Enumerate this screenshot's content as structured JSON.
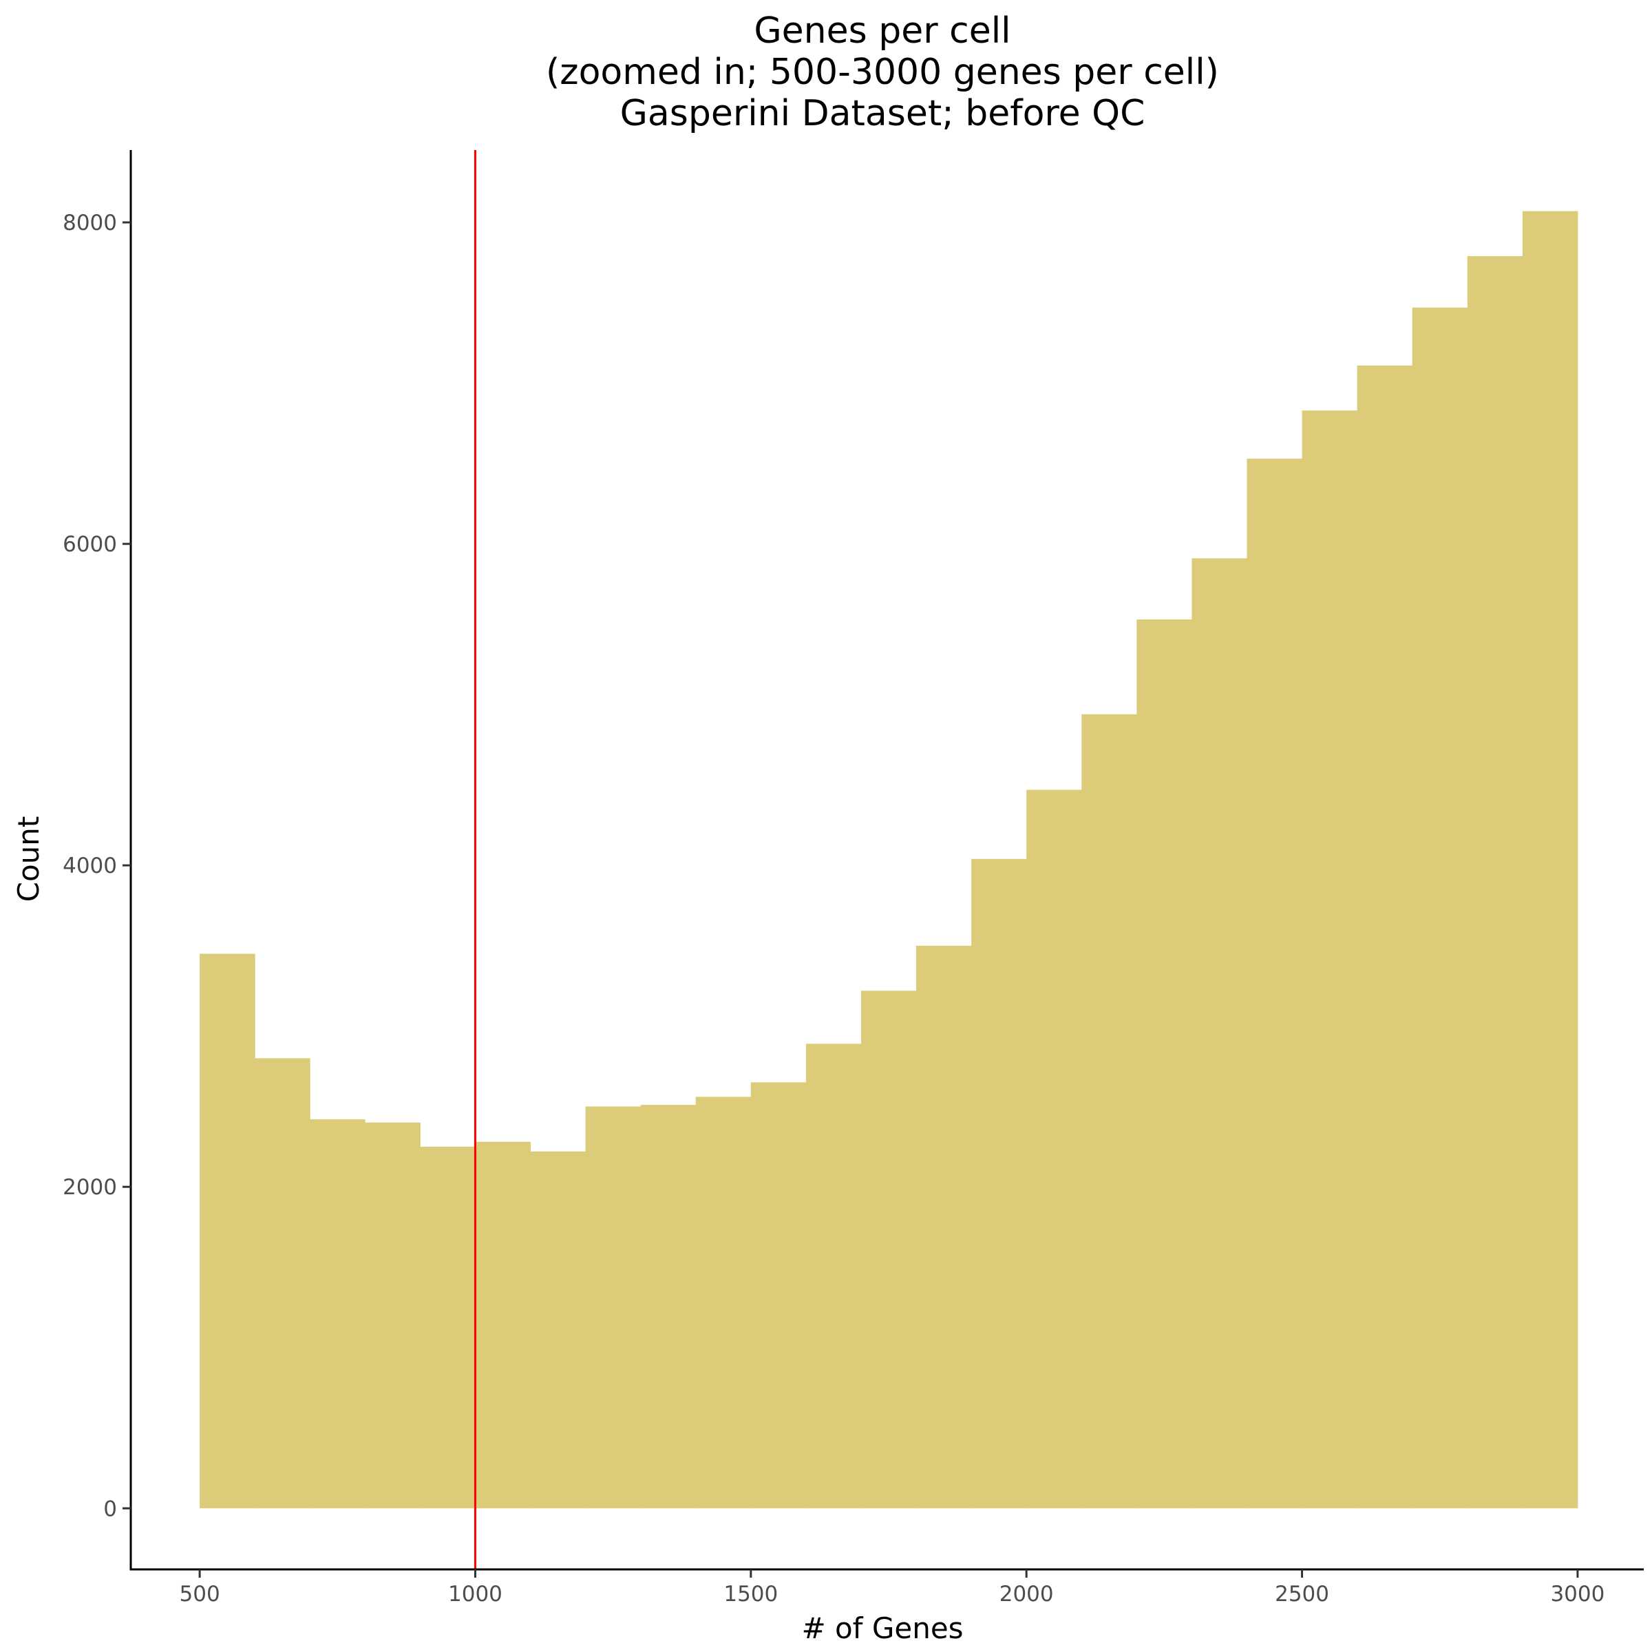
{
  "chart_data": {
    "type": "bar",
    "title_lines": [
      "Genes per cell",
      "(zoomed in; 500-3000 genes per cell)",
      "Gasperini Dataset; before QC"
    ],
    "xlabel": "# of Genes",
    "ylabel": "Count",
    "xlim": [
      375,
      3120
    ],
    "ylim": [
      -380,
      8450
    ],
    "x_ticks": [
      500,
      1000,
      1500,
      2000,
      2500,
      3000
    ],
    "x_tick_labels": [
      "500",
      "1000",
      "1500",
      "2000",
      "2500",
      "3000"
    ],
    "y_ticks": [
      0,
      2000,
      4000,
      6000,
      8000
    ],
    "y_tick_labels": [
      "0",
      "2000",
      "4000",
      "6000",
      "8000"
    ],
    "bins": [
      {
        "x0": 500,
        "x1": 600,
        "count": 3450
      },
      {
        "x0": 600,
        "x1": 700,
        "count": 2800
      },
      {
        "x0": 700,
        "x1": 800,
        "count": 2420
      },
      {
        "x0": 800,
        "x1": 900,
        "count": 2400
      },
      {
        "x0": 900,
        "x1": 1000,
        "count": 2250
      },
      {
        "x0": 1000,
        "x1": 1100,
        "count": 2280
      },
      {
        "x0": 1100,
        "x1": 1200,
        "count": 2220
      },
      {
        "x0": 1200,
        "x1": 1300,
        "count": 2500
      },
      {
        "x0": 1300,
        "x1": 1400,
        "count": 2510
      },
      {
        "x0": 1400,
        "x1": 1500,
        "count": 2560
      },
      {
        "x0": 1500,
        "x1": 1600,
        "count": 2650
      },
      {
        "x0": 1600,
        "x1": 1700,
        "count": 2890
      },
      {
        "x0": 1700,
        "x1": 1800,
        "count": 3220
      },
      {
        "x0": 1800,
        "x1": 1900,
        "count": 3500
      },
      {
        "x0": 1900,
        "x1": 2000,
        "count": 4040
      },
      {
        "x0": 2000,
        "x1": 2100,
        "count": 4470
      },
      {
        "x0": 2100,
        "x1": 2200,
        "count": 4940
      },
      {
        "x0": 2200,
        "x1": 2300,
        "count": 5530
      },
      {
        "x0": 2300,
        "x1": 2400,
        "count": 5910
      },
      {
        "x0": 2400,
        "x1": 2500,
        "count": 6530
      },
      {
        "x0": 2500,
        "x1": 2600,
        "count": 6830
      },
      {
        "x0": 2600,
        "x1": 2700,
        "count": 7110
      },
      {
        "x0": 2700,
        "x1": 2800,
        "count": 7470
      },
      {
        "x0": 2800,
        "x1": 2900,
        "count": 7790
      },
      {
        "x0": 2900,
        "x1": 3000,
        "count": 8070
      }
    ],
    "vline_x": 1000,
    "colors": {
      "bar_fill": "#dccc79",
      "vline": "#ff0000",
      "axis": "#000000",
      "tick_label": "#4d4d4d"
    },
    "grid": false,
    "legend": "none"
  }
}
